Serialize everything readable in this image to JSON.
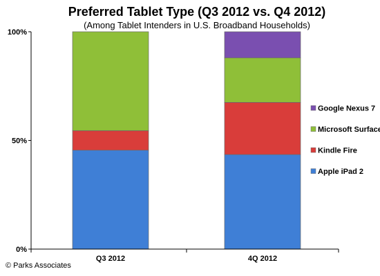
{
  "chart_data": {
    "type": "bar",
    "stacked": true,
    "title": "Preferred Tablet Type (Q3 2012 vs. Q4 2012)",
    "subtitle": "(Among Tablet Intenders in U.S. Broadband Households)",
    "categories": [
      "Q3 2012",
      "4Q 2012"
    ],
    "series": [
      {
        "name": "Apple iPad 2",
        "values": [
          45.5,
          43.5
        ],
        "color": "#3f7fd6"
      },
      {
        "name": "Kindle Fire",
        "values": [
          9,
          24
        ],
        "color": "#d93d3a"
      },
      {
        "name": "Microsoft Surface",
        "values": [
          45.5,
          20.5
        ],
        "color": "#8fbf38"
      },
      {
        "name": "Google Nexus 7",
        "values": [
          0,
          12
        ],
        "color": "#7a4fb0"
      }
    ],
    "y_ticks": [
      "0%",
      "50%",
      "100%"
    ],
    "y_tick_values": [
      0,
      50,
      100
    ],
    "ylim": [
      0,
      100
    ],
    "grid": false,
    "legend_position": "right"
  },
  "credit": "© Parks Associates"
}
